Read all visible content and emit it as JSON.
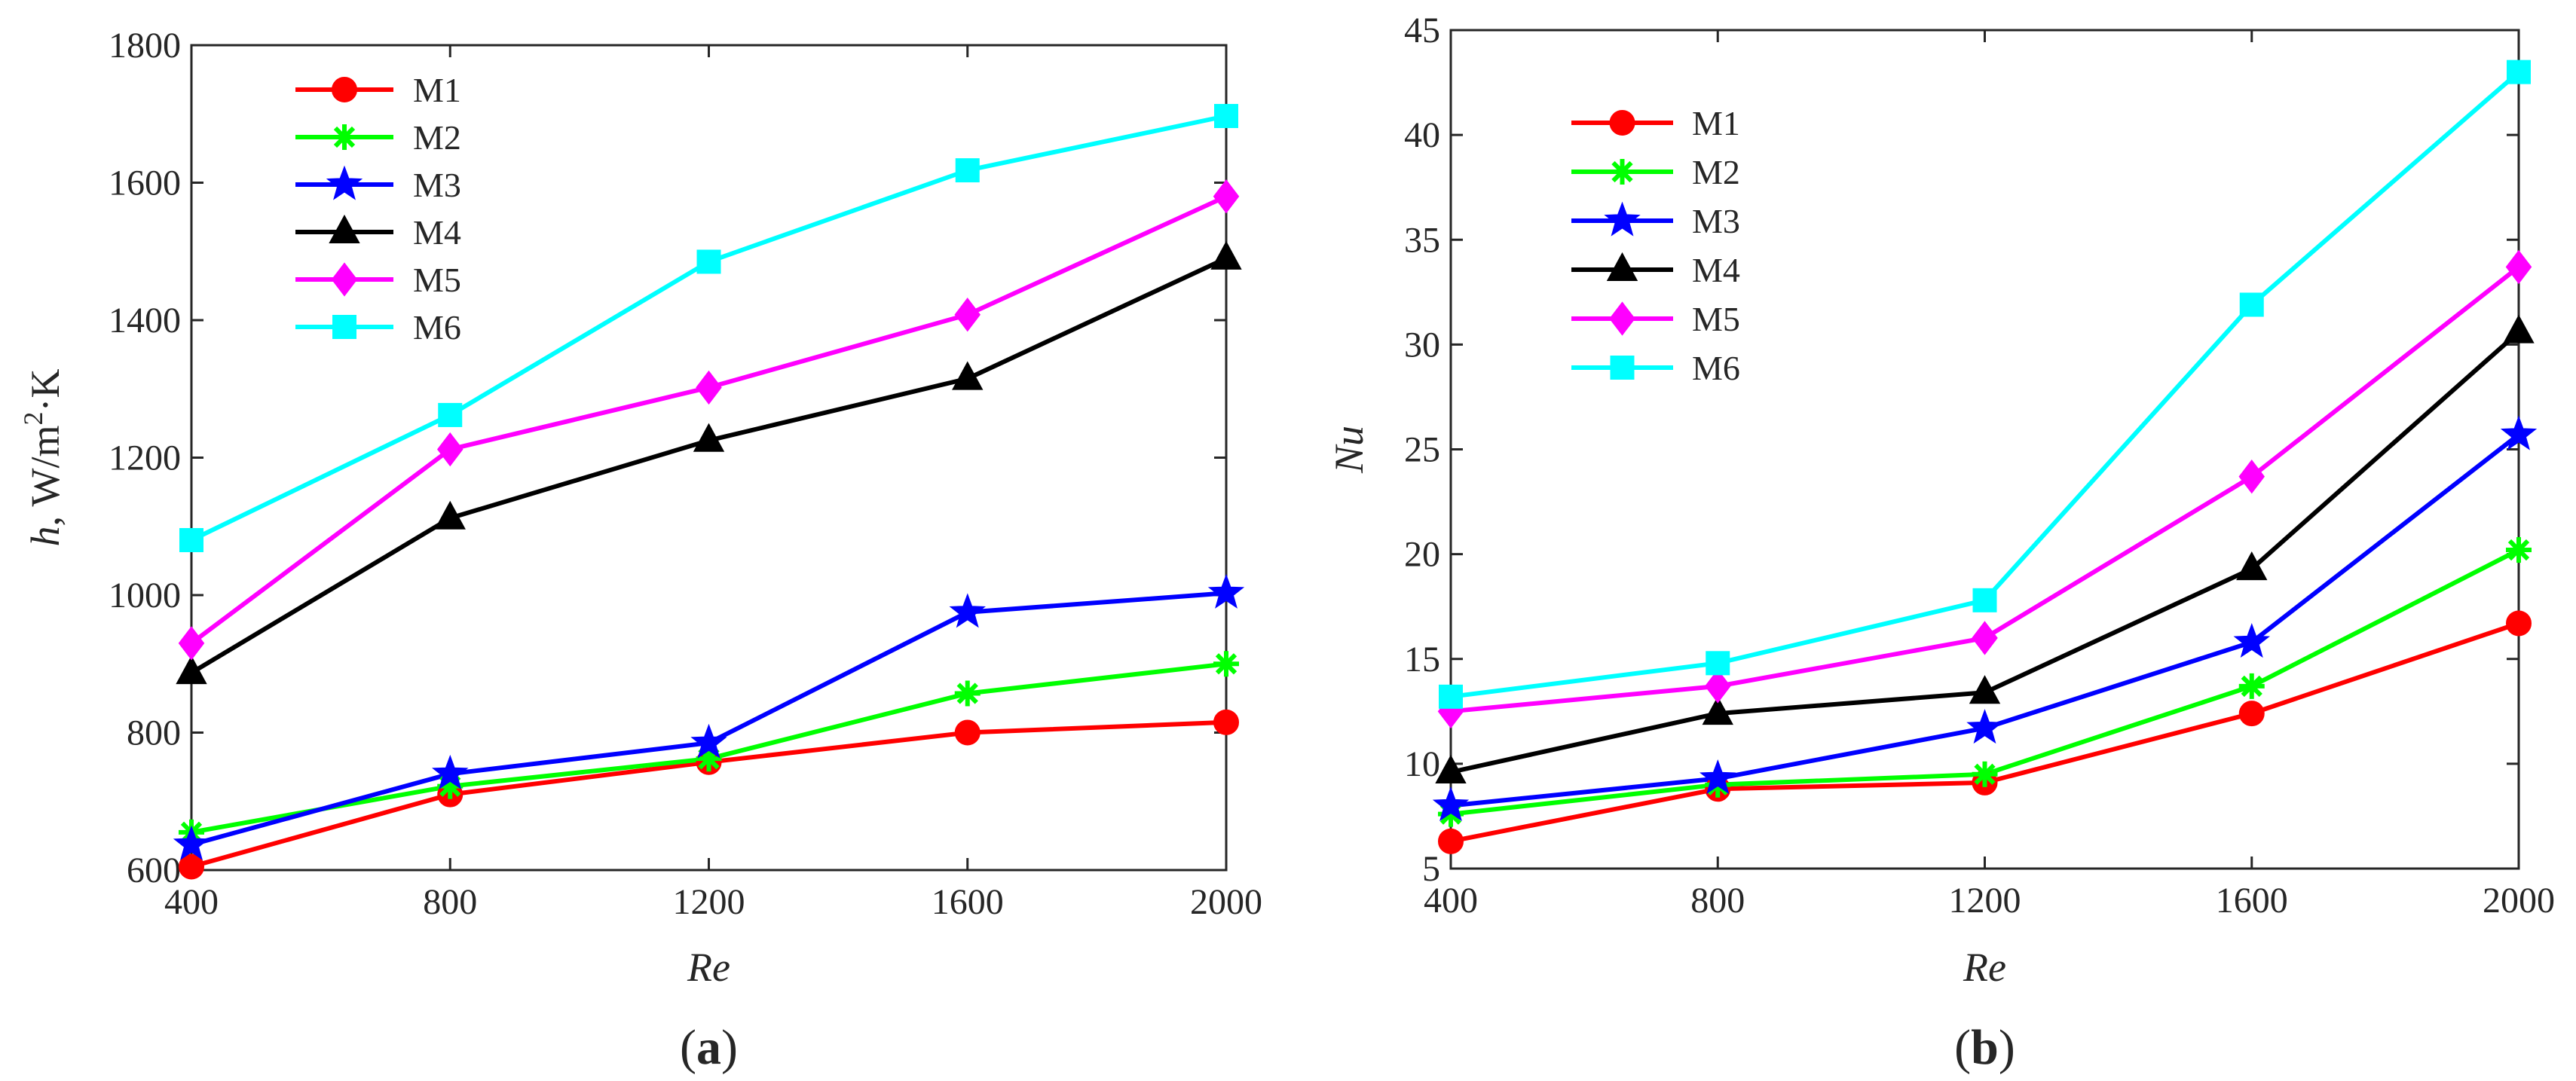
{
  "chart_data": [
    {
      "type": "line",
      "panel_label": "a",
      "title": "",
      "xlabel": "Re",
      "ylabel": {
        "italic": "h",
        "rest": ", W/m",
        "sup": "2",
        "tail": "·K"
      },
      "xlim": [
        400,
        2000
      ],
      "ylim": [
        600,
        1800
      ],
      "x_ticks": [
        "400",
        "800",
        "1200",
        "1600",
        "2000"
      ],
      "y_ticks": [
        "600",
        "800",
        "1000",
        "1200",
        "1400",
        "1600",
        "1800"
      ],
      "grid": false,
      "legend": "top-left",
      "x": [
        400,
        800,
        1200,
        1600,
        2000
      ],
      "series": [
        {
          "name": "M1",
          "color": "#ff0000",
          "marker": "circle",
          "values": [
            605,
            710,
            757,
            800,
            815
          ]
        },
        {
          "name": "M2",
          "color": "#00ff00",
          "marker": "asterisk",
          "values": [
            655,
            722,
            762,
            857,
            900
          ]
        },
        {
          "name": "M3",
          "color": "#0000ff",
          "marker": "star",
          "values": [
            637,
            740,
            785,
            975,
            1003
          ]
        },
        {
          "name": "M4",
          "color": "#000000",
          "marker": "triangle",
          "values": [
            887,
            1112,
            1225,
            1315,
            1490
          ]
        },
        {
          "name": "M5",
          "color": "#ff00ff",
          "marker": "diamond",
          "values": [
            930,
            1212,
            1302,
            1408,
            1580
          ]
        },
        {
          "name": "M6",
          "color": "#00ffff",
          "marker": "square",
          "values": [
            1080,
            1262,
            1485,
            1618,
            1697
          ]
        }
      ]
    },
    {
      "type": "line",
      "panel_label": "b",
      "title": "",
      "xlabel": "Re",
      "ylabel": {
        "italic": "Nu",
        "rest": "",
        "sup": "",
        "tail": ""
      },
      "xlim": [
        400,
        2000
      ],
      "ylim": [
        5,
        45
      ],
      "x_ticks": [
        "400",
        "800",
        "1200",
        "1600",
        "2000"
      ],
      "y_ticks": [
        "5",
        "10",
        "15",
        "20",
        "25",
        "30",
        "35",
        "40",
        "45"
      ],
      "grid": false,
      "legend": "top-left",
      "x": [
        400,
        800,
        1200,
        1600,
        2000
      ],
      "series": [
        {
          "name": "M1",
          "color": "#ff0000",
          "marker": "circle",
          "values": [
            6.3,
            8.8,
            9.1,
            12.4,
            16.7
          ]
        },
        {
          "name": "M2",
          "color": "#00ff00",
          "marker": "asterisk",
          "values": [
            7.6,
            9.0,
            9.5,
            13.7,
            20.2
          ]
        },
        {
          "name": "M3",
          "color": "#0000ff",
          "marker": "star",
          "values": [
            8.0,
            9.3,
            11.7,
            15.8,
            25.7
          ]
        },
        {
          "name": "M4",
          "color": "#000000",
          "marker": "triangle",
          "values": [
            9.6,
            12.4,
            13.4,
            19.3,
            30.6
          ]
        },
        {
          "name": "M5",
          "color": "#ff00ff",
          "marker": "diamond",
          "values": [
            12.5,
            13.7,
            16.0,
            23.7,
            33.7
          ]
        },
        {
          "name": "M6",
          "color": "#00ffff",
          "marker": "square",
          "values": [
            13.2,
            14.8,
            17.8,
            31.9,
            43.0
          ]
        }
      ]
    }
  ]
}
